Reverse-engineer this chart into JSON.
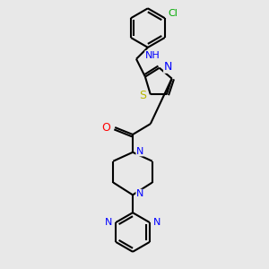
{
  "background_color": "#e8e8e8",
  "bond_color": "black",
  "bond_width": 1.5,
  "atom_colors": {
    "N": "blue",
    "O": "red",
    "S": "#b8b800",
    "Cl": "#00aa00"
  },
  "font_size": 8,
  "fig_size": [
    3.0,
    3.0
  ],
  "dpi": 100,
  "xlim": [
    0,
    300
  ],
  "ylim": [
    0,
    300
  ]
}
